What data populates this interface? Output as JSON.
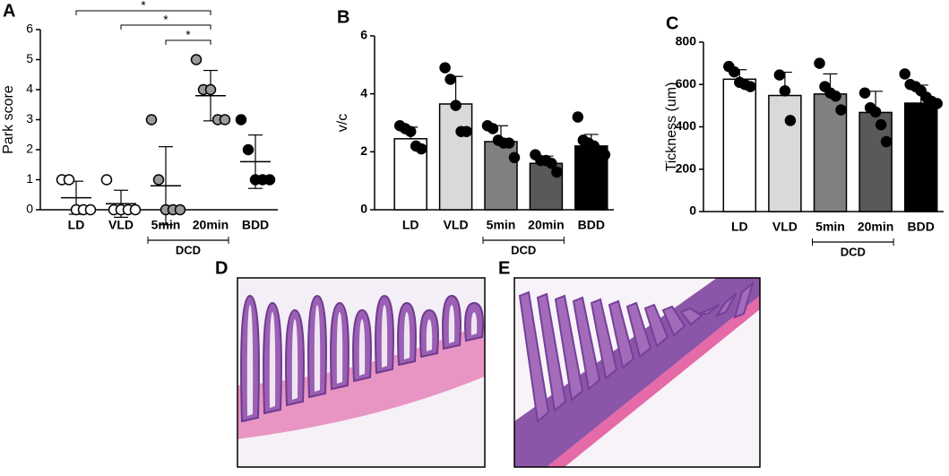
{
  "chart_data": [
    {
      "type": "dot",
      "label": "A",
      "y_label": "Park score",
      "group_label": "DCD",
      "annotations": [
        "*",
        "*",
        "*"
      ],
      "categories": [
        "LD",
        "VLD",
        "5min",
        "20min",
        "BDD"
      ],
      "values": [
        0.4,
        0.2,
        0.8,
        3.8,
        1.6
      ],
      "errors": [
        0.55,
        0.45,
        1.3,
        0.84,
        0.89
      ],
      "points": [
        [
          1,
          1,
          0,
          0,
          0
        ],
        [
          1,
          0,
          0,
          0,
          0
        ],
        [
          3,
          1,
          0,
          0,
          0
        ],
        [
          5,
          4,
          4,
          3,
          3
        ],
        [
          3,
          2,
          1,
          1,
          1
        ]
      ],
      "colors": [
        "#ffffff",
        "#ffffff",
        "#9a9a9a",
        "#9a9a9a",
        "#000000"
      ],
      "ylim": [
        0,
        6
      ],
      "yticks": [
        0,
        1,
        2,
        3,
        4,
        5,
        6
      ]
    },
    {
      "type": "bar",
      "label": "B",
      "y_label": "v/c",
      "group_label": "DCD",
      "categories": [
        "LD",
        "VLD",
        "5min",
        "20min",
        "BDD"
      ],
      "values": [
        2.45,
        3.65,
        2.35,
        1.6,
        2.2
      ],
      "errors": [
        0.4,
        0.95,
        0.55,
        0.25,
        0.4
      ],
      "points": [
        [
          2.9,
          2.8,
          2.7,
          2.2,
          2.1
        ],
        [
          4.9,
          4.5,
          3.6,
          2.7,
          2.7
        ],
        [
          2.9,
          2.8,
          2.4,
          2.3,
          2.3,
          1.8
        ],
        [
          1.9,
          1.7,
          1.7,
          1.6,
          1.3
        ],
        [
          3.2,
          2.4,
          2.3,
          2.2,
          2.0,
          1.9
        ]
      ],
      "colors": [
        "#ffffff",
        "#d9d9d9",
        "#808080",
        "#595959",
        "#000000"
      ],
      "ylim": [
        0,
        6
      ],
      "yticks": [
        0,
        2,
        4,
        6
      ]
    },
    {
      "type": "bar",
      "label": "C",
      "y_label": "Tickness (um)",
      "group_label": "DCD",
      "categories": [
        "LD",
        "VLD",
        "5min",
        "20min",
        "BDD"
      ],
      "values": [
        625,
        548,
        555,
        468,
        512
      ],
      "errors": [
        45,
        110,
        95,
        100,
        85
      ],
      "points": [
        [
          685,
          660,
          610,
          600,
          590
        ],
        [
          645,
          570,
          430
        ],
        [
          700,
          590,
          560,
          545,
          480
        ],
        [
          560,
          490,
          470,
          410,
          330
        ],
        [
          650,
          600,
          590,
          570,
          540,
          520,
          510
        ]
      ],
      "colors": [
        "#ffffff",
        "#d9d9d9",
        "#808080",
        "#595959",
        "#000000"
      ],
      "ylim": [
        0,
        800
      ],
      "yticks": [
        0,
        200,
        400,
        600,
        800
      ]
    }
  ],
  "images": [
    {
      "label": "D"
    },
    {
      "label": "E"
    }
  ]
}
